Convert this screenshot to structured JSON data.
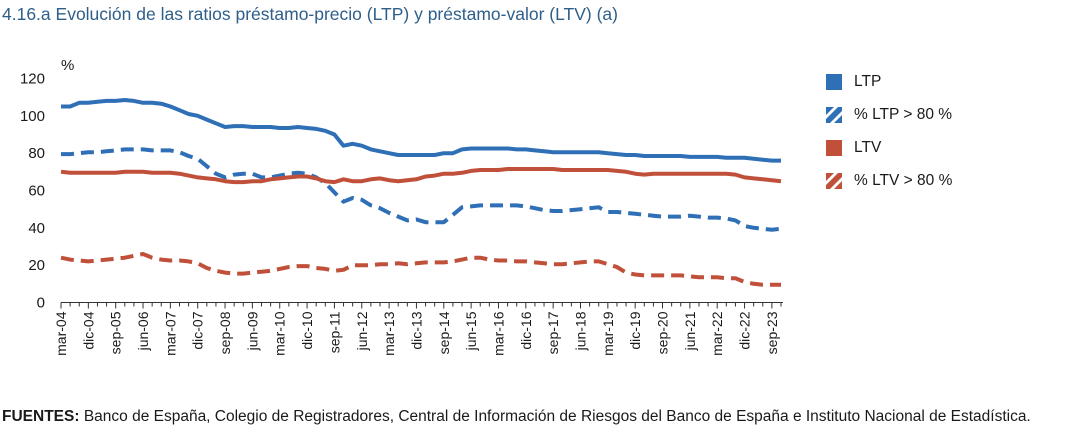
{
  "title": "4.16.a  Evolución de las ratios préstamo-precio (LTP) y préstamo-valor (LTV) (a)",
  "source": {
    "label": "FUENTES:",
    "text": "Banco de España, Colegio de Registradores, Central de Información de Riesgos del Banco de España e Instituto Nacional de Estadística."
  },
  "chart_data": {
    "type": "line",
    "y_unit": "%",
    "ylim": [
      0,
      120
    ],
    "yticks": [
      0,
      20,
      40,
      60,
      80,
      100,
      120
    ],
    "grid": false,
    "legend_position": "right",
    "x_labels": [
      "mar-04",
      "dic-04",
      "sep-05",
      "jun-06",
      "mar-07",
      "dic-07",
      "sep-08",
      "jun-09",
      "mar-10",
      "dic-10",
      "sep-11",
      "jun-12",
      "mar-13",
      "dic-13",
      "sep-14",
      "jun-15",
      "mar-16",
      "dic-16",
      "sep-17",
      "jun-18",
      "mar-19",
      "dic-19",
      "sep-20",
      "jun-21",
      "mar-22",
      "dic-22",
      "sep-23"
    ],
    "x": [
      "mar-04",
      "jun-04",
      "sep-04",
      "dic-04",
      "mar-05",
      "jun-05",
      "sep-05",
      "dic-05",
      "mar-06",
      "jun-06",
      "sep-06",
      "dic-06",
      "mar-07",
      "jun-07",
      "sep-07",
      "dic-07",
      "mar-08",
      "jun-08",
      "sep-08",
      "dic-08",
      "mar-09",
      "jun-09",
      "sep-09",
      "dic-09",
      "mar-10",
      "jun-10",
      "sep-10",
      "dic-10",
      "mar-11",
      "jun-11",
      "sep-11",
      "dic-11",
      "mar-12",
      "jun-12",
      "sep-12",
      "dic-12",
      "mar-13",
      "jun-13",
      "sep-13",
      "dic-13",
      "mar-14",
      "jun-14",
      "sep-14",
      "dic-14",
      "mar-15",
      "jun-15",
      "sep-15",
      "dic-15",
      "mar-16",
      "jun-16",
      "sep-16",
      "dic-16",
      "mar-17",
      "jun-17",
      "sep-17",
      "dic-17",
      "mar-18",
      "jun-18",
      "sep-18",
      "dic-18",
      "mar-19",
      "jun-19",
      "sep-19",
      "dic-19",
      "mar-20",
      "jun-20",
      "sep-20",
      "dic-20",
      "mar-21",
      "jun-21",
      "sep-21",
      "dic-21",
      "mar-22",
      "jun-22",
      "sep-22",
      "dic-22",
      "mar-23",
      "jun-23",
      "sep-23",
      "dic-23"
    ],
    "series": [
      {
        "name": "LTP",
        "color": "#2f6fb6",
        "dash": false,
        "values": [
          105,
          105,
          107,
          107,
          107.5,
          108,
          108,
          108.5,
          108,
          107,
          107,
          106.5,
          105,
          103,
          101,
          100,
          98,
          96,
          94,
          94.5,
          94.5,
          94,
          94,
          94,
          93.5,
          93.5,
          94,
          93.5,
          93,
          92,
          90,
          84,
          85,
          84,
          82,
          81,
          80,
          79,
          79,
          79,
          79,
          79,
          80,
          80,
          82,
          82.5,
          82.5,
          82.5,
          82.5,
          82.5,
          82,
          82,
          81.5,
          81,
          80.5,
          80.5,
          80.5,
          80.5,
          80.5,
          80.5,
          80,
          79.5,
          79,
          79,
          78.5,
          78.5,
          78.5,
          78.5,
          78.5,
          78,
          78,
          78,
          78,
          77.5,
          77.5,
          77.5,
          77,
          76.5,
          76,
          76
        ]
      },
      {
        "name": "% LTP > 80 %",
        "color": "#2f6fb6",
        "dash": true,
        "values": [
          79.5,
          79.5,
          80,
          80.5,
          80.5,
          81,
          81.5,
          82,
          82,
          82,
          81.5,
          81.5,
          81.5,
          80.5,
          78.5,
          77,
          73,
          69,
          67,
          68.5,
          69,
          69,
          67,
          67,
          68,
          69,
          69.5,
          69,
          67,
          64,
          59,
          54,
          56,
          55,
          52,
          50.5,
          48,
          46,
          44,
          44.5,
          43,
          43,
          43,
          47,
          51,
          51.5,
          52,
          52,
          52,
          52,
          52,
          51.5,
          50.5,
          49.5,
          49,
          49,
          49.5,
          50,
          50.5,
          51,
          48.5,
          48.5,
          48,
          47.5,
          47,
          46.5,
          46,
          46,
          46,
          46.5,
          46,
          45.5,
          45.5,
          45,
          44,
          41,
          40,
          39.5,
          39,
          39.5
        ]
      },
      {
        "name": "LTV",
        "color": "#c0503a",
        "dash": false,
        "values": [
          70,
          69.5,
          69.5,
          69.5,
          69.5,
          69.5,
          69.5,
          70,
          70,
          70,
          69.5,
          69.5,
          69.5,
          69,
          68,
          67,
          66.5,
          66,
          65,
          64.5,
          64.5,
          65,
          65,
          66,
          66.5,
          67,
          67.5,
          67.5,
          66.5,
          65,
          64.5,
          66,
          65,
          65,
          66,
          66.5,
          65.5,
          65,
          65.5,
          66,
          67.5,
          68,
          69,
          69,
          69.5,
          70.5,
          71,
          71,
          71,
          71.5,
          71.5,
          71.5,
          71.5,
          71.5,
          71.5,
          71,
          71,
          71,
          71,
          71,
          71,
          70.5,
          70,
          69,
          68.5,
          69,
          69,
          69,
          69,
          69,
          69,
          69,
          69,
          69,
          68.5,
          67,
          66.5,
          66,
          65.5,
          65
        ]
      },
      {
        "name": "% LTV > 80 %",
        "color": "#c0503a",
        "dash": true,
        "values": [
          24,
          23,
          22.5,
          22,
          22.5,
          23,
          23.5,
          24,
          25,
          26,
          24,
          23,
          22.5,
          22.5,
          22,
          21,
          18.5,
          17,
          16,
          15.5,
          15.5,
          16,
          16.5,
          17,
          18,
          19,
          19.5,
          19.5,
          18.5,
          18,
          17,
          17.5,
          20,
          20,
          20,
          20.5,
          20.5,
          21,
          20.5,
          21,
          21.5,
          21.5,
          21.5,
          22,
          23,
          24,
          24,
          23,
          22.5,
          22.5,
          22,
          22,
          21.5,
          21,
          20.5,
          20.5,
          21,
          21.5,
          22,
          22,
          20.5,
          19,
          16,
          15,
          14.5,
          14.5,
          14.5,
          14.5,
          14.5,
          14,
          13.5,
          13.5,
          13.5,
          13,
          13,
          11,
          10,
          9.5,
          9.5,
          9.5
        ]
      }
    ]
  }
}
